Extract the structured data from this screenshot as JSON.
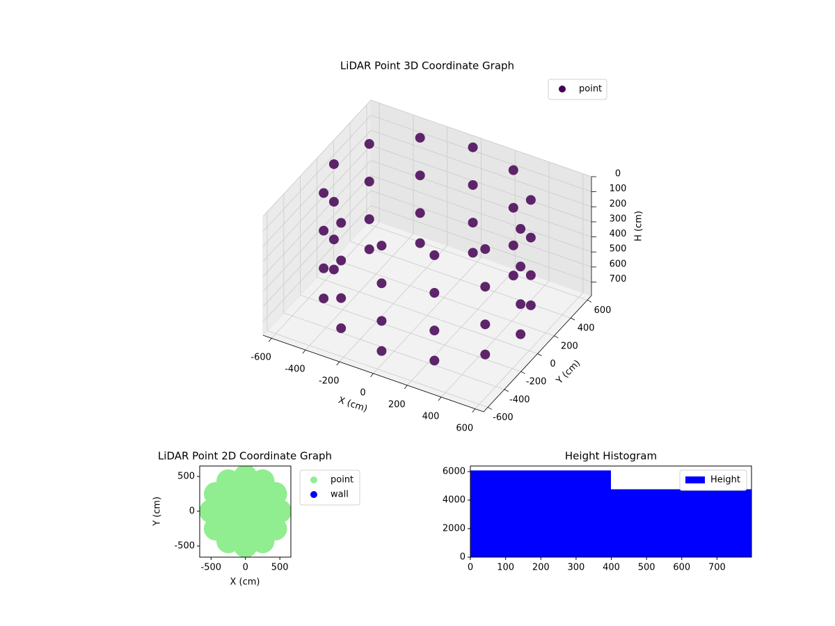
{
  "chart_data": [
    {
      "type": "scatter3d",
      "title": "LiDAR Point 3D Coordinate Graph",
      "x_label": "X (cm)",
      "y_label": "Y (cm)",
      "z_label": "H (cm)",
      "xlim": [
        -650,
        650
      ],
      "ylim": [
        -650,
        650
      ],
      "zlim": [
        0,
        790
      ],
      "z_inverted": true,
      "xticks": [
        -600,
        -400,
        -200,
        0,
        200,
        400,
        600
      ],
      "yticks": [
        -600,
        -400,
        -200,
        0,
        200,
        400,
        600
      ],
      "zticks": [
        0,
        100,
        200,
        300,
        400,
        500,
        600,
        700
      ],
      "grid": true,
      "legend": "upper right",
      "series": [
        {
          "name": "point",
          "color": "#440154",
          "x": [
            550,
            476,
            275,
            0,
            -275,
            -476,
            -550,
            -476,
            -275,
            0,
            275,
            476,
            550,
            476,
            275,
            0,
            -275,
            -476,
            -550,
            -476,
            -275,
            0,
            275,
            476,
            550,
            476,
            275,
            0,
            -275,
            -476,
            -550,
            -476,
            -275,
            0,
            275,
            476,
            550,
            476,
            275,
            0,
            -275,
            -476,
            -550,
            -476,
            -275,
            0,
            275,
            476
          ],
          "y": [
            0,
            275,
            476,
            550,
            476,
            275,
            0,
            -275,
            -476,
            -550,
            -476,
            -275,
            0,
            275,
            476,
            550,
            476,
            275,
            0,
            -275,
            -476,
            -550,
            -476,
            -275,
            0,
            275,
            476,
            550,
            476,
            275,
            0,
            -275,
            -476,
            -550,
            -476,
            -275,
            0,
            275,
            476,
            550,
            476,
            275,
            0,
            -275,
            -476,
            -550,
            -476,
            -275
          ],
          "z": [
            0,
            0,
            0,
            0,
            0,
            0,
            0,
            0,
            0,
            0,
            0,
            0,
            250,
            250,
            250,
            250,
            250,
            250,
            250,
            250,
            250,
            250,
            250,
            250,
            500,
            500,
            500,
            500,
            500,
            500,
            500,
            500,
            500,
            500,
            500,
            500,
            700,
            700,
            700,
            700,
            700,
            700,
            700,
            700,
            700,
            700,
            700,
            700
          ]
        }
      ]
    },
    {
      "type": "scatter",
      "title": "LiDAR Point 2D Coordinate Graph",
      "x_label": "X (cm)",
      "y_label": "Y (cm)",
      "xlim": [
        -665,
        660
      ],
      "ylim": [
        -660,
        650
      ],
      "xticks": [
        -500,
        0,
        500
      ],
      "yticks": [
        -500,
        0,
        500
      ],
      "legend": "outside right",
      "series": [
        {
          "name": "point",
          "color": "#90ee90",
          "x": [
            500,
            433,
            250,
            0,
            -250,
            -433,
            -500,
            -433,
            -250,
            0,
            250,
            433,
            250,
            177,
            0,
            -177,
            -250,
            -177,
            0,
            177,
            0
          ],
          "y": [
            0,
            250,
            433,
            500,
            433,
            250,
            0,
            -250,
            -433,
            -500,
            -433,
            -250,
            0,
            177,
            250,
            177,
            0,
            -177,
            -250,
            -177,
            0
          ]
        },
        {
          "name": "wall",
          "color": "#0000ff",
          "x": [],
          "y": []
        }
      ]
    },
    {
      "type": "hist",
      "title": "Height Histogram",
      "bins": [
        0,
        399,
        798
      ],
      "counts": [
        6080,
        4760
      ],
      "name": "Height",
      "color": "#0000ff",
      "xlim": [
        0,
        798
      ],
      "ylim": [
        0,
        6390
      ],
      "xticks": [
        0,
        100,
        200,
        300,
        400,
        500,
        600,
        700
      ],
      "yticks": [
        0,
        2000,
        4000,
        6000
      ],
      "legend": "upper right"
    }
  ]
}
